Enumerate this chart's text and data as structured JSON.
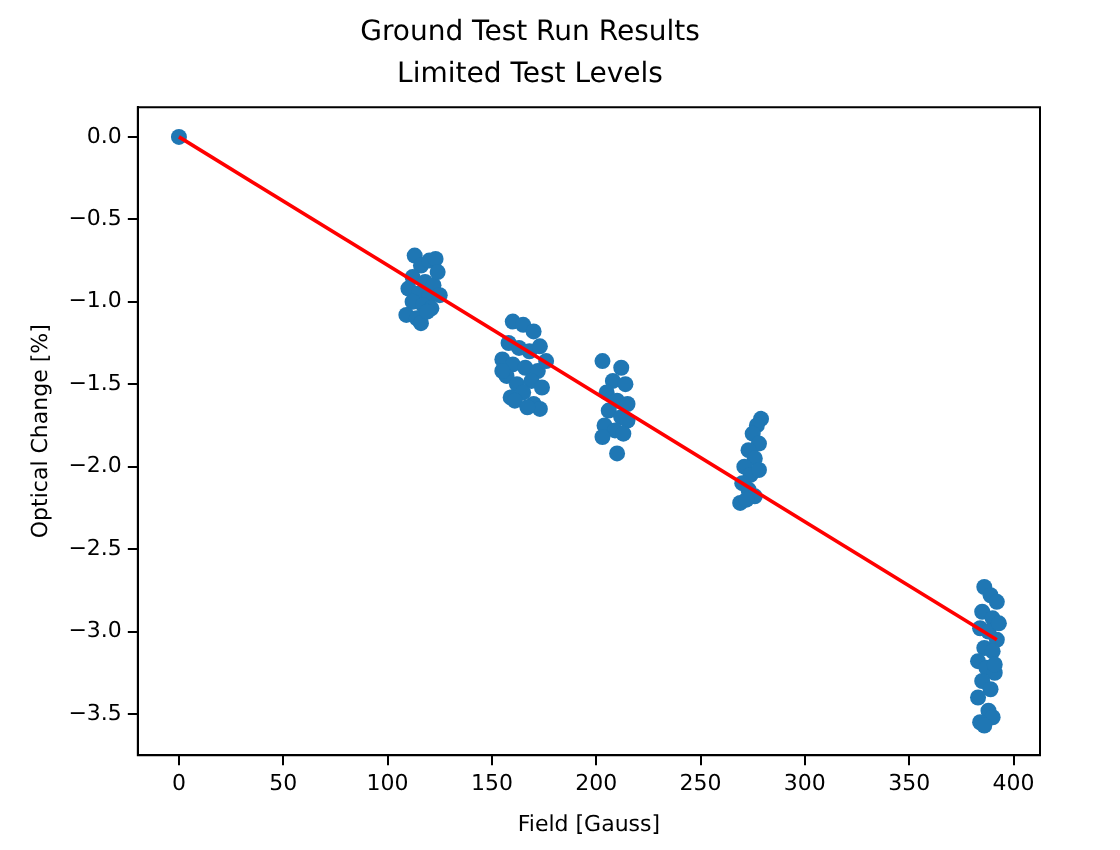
{
  "chart_data": {
    "type": "scatter",
    "title": "Ground Test Run Results",
    "subtitle": "Limited Test Levels",
    "xlabel": "Field [Gauss]",
    "ylabel": "Optical Change [%]",
    "xlim": [
      -19.7,
      412.7
    ],
    "ylim": [
      -3.75,
      0.18
    ],
    "xticks": [
      0,
      50,
      100,
      150,
      200,
      250,
      300,
      350,
      400
    ],
    "yticks": [
      {
        "value": 0,
        "label": "0.0"
      },
      {
        "value": -0.5,
        "label": "−0.5"
      },
      {
        "value": -1,
        "label": "−1.0"
      },
      {
        "value": -1.5,
        "label": "−1.5"
      },
      {
        "value": -2,
        "label": "−2.0"
      },
      {
        "value": -2.5,
        "label": "−2.5"
      },
      {
        "value": -3,
        "label": "−3.0"
      },
      {
        "value": -3.5,
        "label": "−3.5"
      }
    ],
    "grid": false,
    "legend": false,
    "marker": "circle",
    "series": [
      {
        "type": "scatter",
        "color": "#1f77b4",
        "x": [
          0,
          113,
          116,
          120,
          123,
          112,
          118,
          122,
          110,
          115,
          120,
          125,
          112,
          117,
          121,
          109,
          114,
          116,
          119,
          124,
          160,
          165,
          170,
          158,
          163,
          168,
          173,
          155,
          160,
          166,
          172,
          176,
          157,
          162,
          169,
          174,
          159,
          165,
          170,
          173,
          161,
          167,
          155,
          203,
          212,
          208,
          214,
          205,
          210,
          215,
          206,
          212,
          204,
          209,
          215,
          203,
          210,
          213,
          279,
          277,
          275,
          278,
          273,
          276,
          271,
          274,
          278,
          270,
          273,
          276,
          269,
          272,
          386,
          389,
          392,
          385,
          390,
          384,
          388,
          392,
          386,
          390,
          383,
          387,
          391,
          385,
          389,
          383,
          388,
          390,
          384,
          386,
          391,
          393
        ],
        "values": [
          0,
          -0.72,
          -0.78,
          -0.75,
          -0.74,
          -0.85,
          -0.88,
          -0.9,
          -0.92,
          -0.95,
          -0.97,
          -0.96,
          -1.0,
          -1.02,
          -1.04,
          -1.08,
          -1.1,
          -1.13,
          -1.06,
          -0.82,
          -1.12,
          -1.14,
          -1.18,
          -1.25,
          -1.28,
          -1.3,
          -1.27,
          -1.35,
          -1.38,
          -1.4,
          -1.42,
          -1.36,
          -1.45,
          -1.5,
          -1.48,
          -1.52,
          -1.58,
          -1.55,
          -1.62,
          -1.65,
          -1.6,
          -1.64,
          -1.42,
          -1.36,
          -1.4,
          -1.48,
          -1.5,
          -1.55,
          -1.6,
          -1.62,
          -1.66,
          -1.7,
          -1.75,
          -1.78,
          -1.72,
          -1.82,
          -1.92,
          -1.8,
          -1.71,
          -1.75,
          -1.8,
          -1.86,
          -1.9,
          -1.95,
          -2.0,
          -2.05,
          -2.02,
          -2.1,
          -2.14,
          -2.18,
          -2.22,
          -2.2,
          -2.73,
          -2.78,
          -2.82,
          -2.88,
          -2.92,
          -2.98,
          -3.0,
          -3.05,
          -3.1,
          -3.12,
          -3.18,
          -3.22,
          -3.25,
          -3.3,
          -3.35,
          -3.4,
          -3.48,
          -3.52,
          -3.55,
          -3.57,
          -3.2,
          -2.95
        ]
      },
      {
        "type": "line",
        "color": "#ff0000",
        "marker": "none",
        "line_style": "solid",
        "x": [
          0,
          392
        ],
        "values": [
          0,
          -3.05
        ]
      }
    ]
  }
}
